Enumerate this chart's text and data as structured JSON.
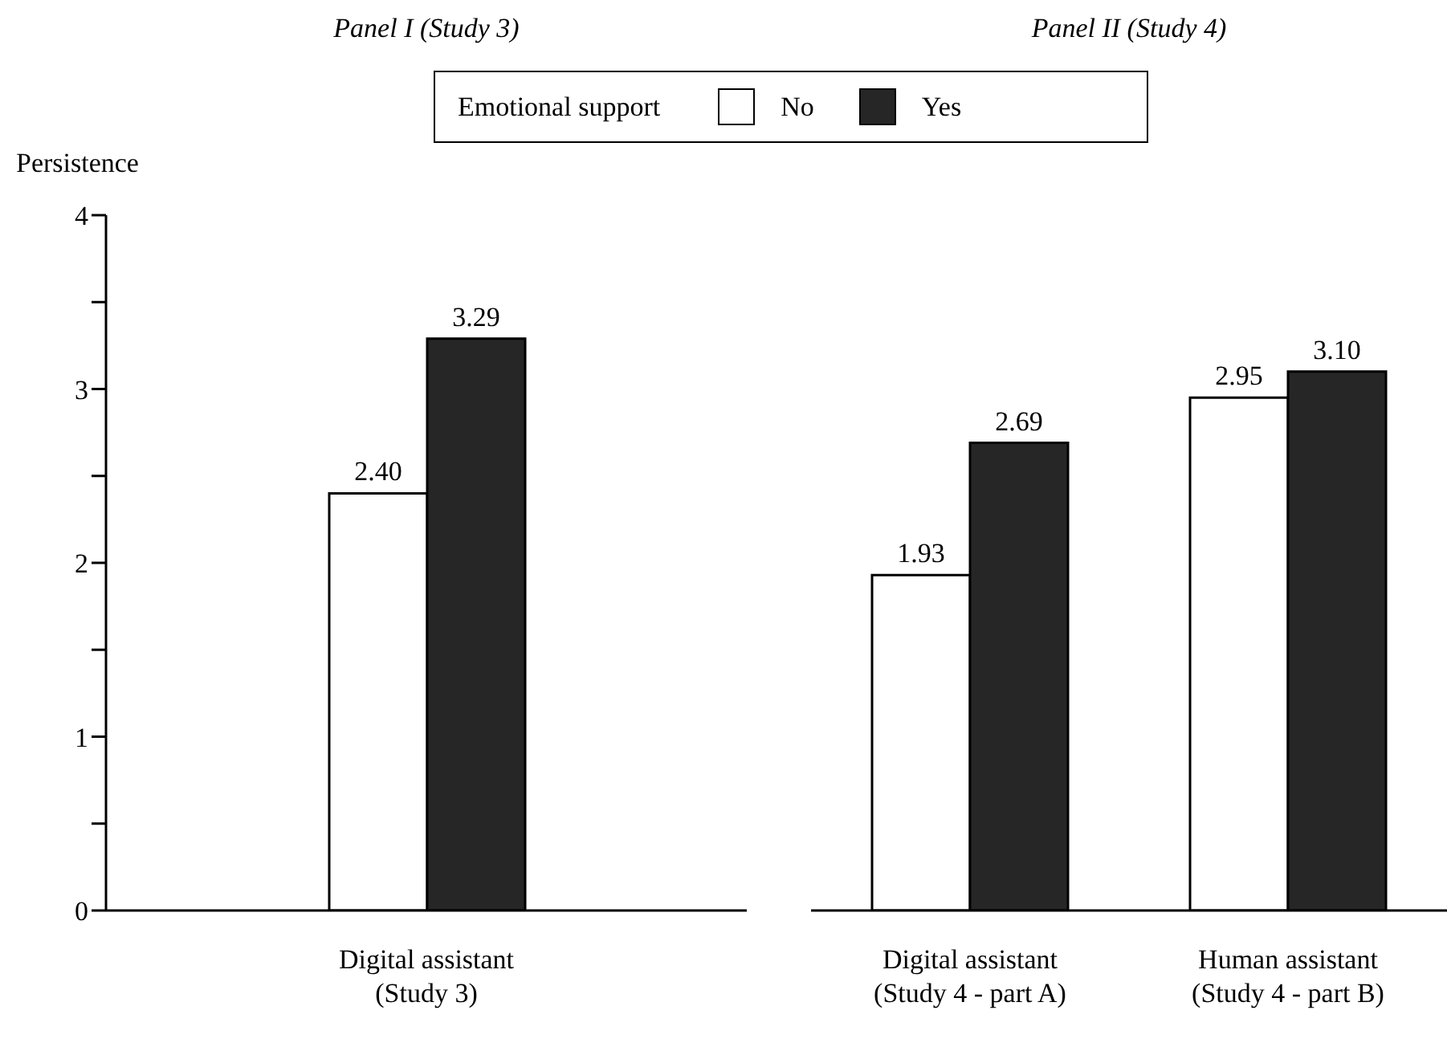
{
  "chart_data": [
    {
      "type": "bar",
      "title": "Panel I (Study 3)",
      "ylabel": "Persistence",
      "legend_title": "Emotional support",
      "legend": "top",
      "categories": [
        "Digital assistant\n(Study 3)"
      ],
      "series": [
        {
          "name": "No",
          "color": "#ffffff",
          "values": [
            2.4
          ],
          "value_labels": [
            "2.40"
          ]
        },
        {
          "name": "Yes",
          "color": "#262626",
          "values": [
            3.29
          ],
          "value_labels": [
            "3.29"
          ]
        }
      ],
      "ylim": [
        0,
        4
      ],
      "yticks": [
        0,
        {
          "value": 0.5,
          "label": null
        },
        1,
        {
          "value": 1.5,
          "label": null
        },
        2,
        {
          "value": 2.5,
          "label": null
        },
        3,
        {
          "value": 3.5,
          "label": null
        },
        4
      ],
      "grid": false
    },
    {
      "type": "bar",
      "title": "Panel II (Study 4)",
      "categories": [
        "Digital assistant\n(Study 4 - part A)",
        "Human assistant\n(Study 4 - part B)"
      ],
      "series": [
        {
          "color": "#ffffff",
          "values": [
            1.93,
            2.95
          ],
          "value_labels": [
            "1.93",
            "2.95"
          ]
        },
        {
          "color": "#262626",
          "values": [
            2.69,
            3.1
          ],
          "value_labels": [
            "2.69",
            "3.10"
          ]
        }
      ],
      "ylim": [
        0,
        4
      ],
      "tick_labels": "x",
      "grid": false
    }
  ]
}
